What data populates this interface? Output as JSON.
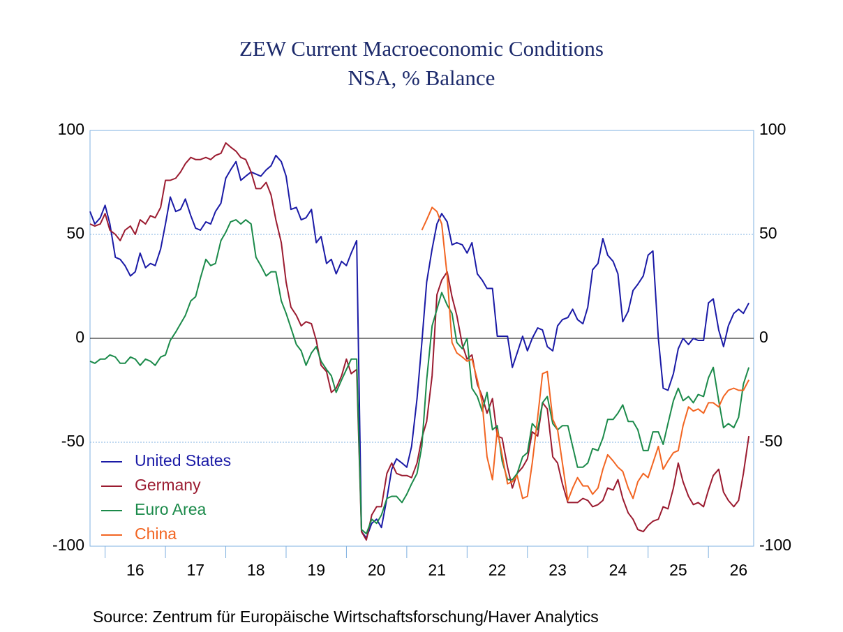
{
  "chart_data": {
    "type": "line",
    "title": "ZEW Current Macroeconomic Conditions",
    "subtitle": "NSA, % Balance",
    "source": "Source:  Zentrum für Europäische Wirtschaftsforschung/Haver Analytics",
    "x": [
      2015.75,
      2015.83,
      2015.92,
      2016.0,
      2016.08,
      2016.17,
      2016.25,
      2016.33,
      2016.42,
      2016.5,
      2016.58,
      2016.67,
      2016.75,
      2016.83,
      2016.92,
      2017.0,
      2017.08,
      2017.17,
      2017.25,
      2017.33,
      2017.42,
      2017.5,
      2017.58,
      2017.67,
      2017.75,
      2017.83,
      2017.92,
      2018.0,
      2018.08,
      2018.17,
      2018.25,
      2018.33,
      2018.42,
      2018.5,
      2018.58,
      2018.67,
      2018.75,
      2018.83,
      2018.92,
      2019.0,
      2019.08,
      2019.17,
      2019.25,
      2019.33,
      2019.42,
      2019.5,
      2019.58,
      2019.67,
      2019.75,
      2019.83,
      2019.92,
      2020.0,
      2020.08,
      2020.17,
      2020.25,
      2020.33,
      2020.42,
      2020.5,
      2020.58,
      2020.67,
      2020.75,
      2020.83,
      2020.92,
      2021.0,
      2021.08,
      2021.17,
      2021.25,
      2021.33,
      2021.42,
      2021.5,
      2021.58,
      2021.67,
      2021.75,
      2021.83,
      2021.92,
      2022.0,
      2022.08,
      2022.17,
      2022.25,
      2022.33,
      2022.42,
      2022.5,
      2022.58,
      2022.67,
      2022.75,
      2022.83,
      2022.92,
      2023.0,
      2023.08,
      2023.17,
      2023.25,
      2023.33,
      2023.42,
      2023.5,
      2023.58,
      2023.67,
      2023.75,
      2023.83,
      2023.92,
      2024.0,
      2024.08,
      2024.17,
      2024.25,
      2024.33,
      2024.42,
      2024.5,
      2024.58,
      2024.67,
      2024.75,
      2024.83,
      2024.92,
      2025.0,
      2025.08,
      2025.17,
      2025.25,
      2025.33,
      2025.42,
      2025.5,
      2025.58,
      2025.67,
      2025.75,
      2025.83,
      2025.92,
      2026.0,
      2026.08,
      2026.17,
      2026.25,
      2026.33,
      2026.42,
      2026.5,
      2026.58,
      2026.67
    ],
    "series": [
      {
        "name": "United States",
        "color": "#1a1aa6",
        "values": [
          61,
          55,
          58,
          64,
          55,
          39,
          38,
          35,
          30,
          32,
          41,
          34,
          36,
          35,
          43,
          55,
          68,
          61,
          62,
          67,
          59,
          53,
          52,
          56,
          55,
          61,
          65,
          77,
          81,
          85,
          76,
          78,
          80,
          79,
          78,
          81,
          83,
          88,
          85,
          78,
          62,
          63,
          57,
          58,
          62,
          46,
          49,
          36,
          38,
          31,
          37,
          35,
          41,
          47,
          -93,
          -96,
          -89,
          -87,
          -91,
          -77,
          -63,
          -58,
          -60,
          -62,
          -52,
          -29,
          -2,
          27,
          43,
          55,
          60,
          56,
          45,
          46,
          45,
          41,
          46,
          31,
          28,
          24,
          24,
          1,
          1,
          1,
          -14,
          -7,
          1,
          -6,
          0,
          5,
          4,
          -4,
          -6,
          6,
          9,
          10,
          14,
          9,
          7,
          15,
          33,
          36,
          48,
          40,
          37,
          31,
          8,
          13,
          23,
          26,
          30,
          40,
          42,
          0,
          -24,
          -25,
          -17,
          -5,
          0,
          -3,
          0,
          -1,
          -1,
          17,
          19,
          4,
          -4,
          6,
          12,
          14,
          12,
          17
        ]
      },
      {
        "name": "Germany",
        "color": "#9b1b30",
        "values": [
          55,
          54,
          55,
          60,
          52,
          50,
          47,
          52,
          54,
          50,
          57,
          55,
          59,
          58,
          63,
          76,
          76,
          77,
          80,
          84,
          87,
          86,
          86,
          87,
          86,
          88,
          89,
          94,
          92,
          90,
          87,
          86,
          80,
          72,
          72,
          75,
          69,
          57,
          46,
          27,
          15,
          11,
          6,
          8,
          7,
          -1,
          -13,
          -16,
          -26,
          -24,
          -18,
          -10,
          -17,
          -15,
          -93,
          -97,
          -85,
          -81,
          -81,
          -65,
          -60,
          -65,
          -66,
          -66,
          -67,
          -60,
          -48,
          -40,
          -18,
          21,
          28,
          32,
          20,
          11,
          -3,
          -10,
          -8,
          -22,
          -28,
          -36,
          -29,
          -47,
          -48,
          -62,
          -72,
          -65,
          -62,
          -58,
          -45,
          -47,
          -31,
          -34,
          -57,
          -60,
          -70,
          -79,
          -79,
          -79,
          -77,
          -78,
          -81,
          -80,
          -78,
          -72,
          -73,
          -68,
          -77,
          -84,
          -87,
          -92,
          -93,
          -90,
          -88,
          -87,
          -81,
          -82,
          -72,
          -60,
          -69,
          -76,
          -80,
          -79,
          -81,
          -73,
          -66,
          -63,
          -74,
          -78,
          -81,
          -78,
          -65,
          -47
        ]
      },
      {
        "name": "Euro Area",
        "color": "#1b8a4a",
        "values": [
          -11,
          -12,
          -10,
          -10,
          -8,
          -9,
          -12,
          -12,
          -9,
          -10,
          -13,
          -10,
          -11,
          -13,
          -9,
          -8,
          -1,
          3,
          7,
          11,
          18,
          20,
          29,
          38,
          35,
          36,
          47,
          51,
          56,
          57,
          55,
          57,
          55,
          39,
          35,
          30,
          32,
          32,
          18,
          12,
          5,
          -3,
          -6,
          -13,
          -7,
          -4,
          -11,
          -15,
          -18,
          -26,
          -20,
          -15,
          -10,
          -10,
          -92,
          -94,
          -87,
          -89,
          -85,
          -77,
          -76,
          -76,
          -79,
          -75,
          -70,
          -65,
          -52,
          -20,
          6,
          14,
          22,
          16,
          12,
          -2,
          -5,
          0,
          -24,
          -28,
          -35,
          -26,
          -44,
          -42,
          -59,
          -68,
          -68,
          -65,
          -57,
          -55,
          -41,
          -44,
          -31,
          -28,
          -41,
          -44,
          -42,
          -42,
          -52,
          -62,
          -62,
          -60,
          -53,
          -54,
          -48,
          -39,
          -39,
          -36,
          -32,
          -40,
          -40,
          -44,
          -54,
          -54,
          -45,
          -45,
          -51,
          -41,
          -30,
          -24,
          -30,
          -28,
          -31,
          -27,
          -28,
          -19,
          -14,
          -30,
          -43,
          -41,
          -43,
          -38,
          -22,
          -14
        ]
      },
      {
        "name": "China",
        "color": "#f26522",
        "values": [
          null,
          null,
          null,
          null,
          null,
          null,
          null,
          null,
          null,
          null,
          null,
          null,
          null,
          null,
          null,
          null,
          null,
          null,
          null,
          null,
          null,
          null,
          null,
          null,
          null,
          null,
          null,
          null,
          null,
          null,
          null,
          null,
          null,
          null,
          null,
          null,
          null,
          null,
          null,
          null,
          null,
          null,
          null,
          null,
          null,
          null,
          null,
          null,
          null,
          null,
          null,
          null,
          null,
          null,
          null,
          null,
          null,
          null,
          null,
          null,
          null,
          null,
          null,
          null,
          null,
          null,
          52,
          57,
          63,
          61,
          55,
          30,
          -2,
          -7,
          -9,
          -11,
          -10,
          -20,
          -31,
          -57,
          -68,
          -44,
          -56,
          -70,
          -69,
          -66,
          -77,
          -76,
          -60,
          -38,
          -17,
          -16,
          -39,
          -44,
          -60,
          -78,
          -72,
          -67,
          -71,
          -71,
          -75,
          -72,
          -63,
          -56,
          -59,
          -62,
          -64,
          -72,
          -77,
          -69,
          -65,
          -67,
          -60,
          -52,
          -63,
          -59,
          -55,
          -54,
          -42,
          -33,
          -35,
          -34,
          -36,
          -31,
          -31,
          -33,
          -28,
          -25,
          -24,
          -25,
          -25,
          -20
        ]
      }
    ],
    "xlim": [
      2015.75,
      2026.75
    ],
    "xticks": [
      {
        "value": 2016,
        "label": "16"
      },
      {
        "value": 2017,
        "label": "17"
      },
      {
        "value": 2018,
        "label": "18"
      },
      {
        "value": 2019,
        "label": "19"
      },
      {
        "value": 2020,
        "label": "20"
      },
      {
        "value": 2021,
        "label": "21"
      },
      {
        "value": 2022,
        "label": "22"
      },
      {
        "value": 2023,
        "label": "23"
      },
      {
        "value": 2024,
        "label": "24"
      },
      {
        "value": 2025,
        "label": "25"
      },
      {
        "value": 2026,
        "label": "26"
      }
    ],
    "ylim": [
      -100,
      100
    ],
    "yticks": [
      -100,
      -50,
      0,
      50,
      100
    ],
    "grid": true,
    "legend": "lower-left"
  }
}
